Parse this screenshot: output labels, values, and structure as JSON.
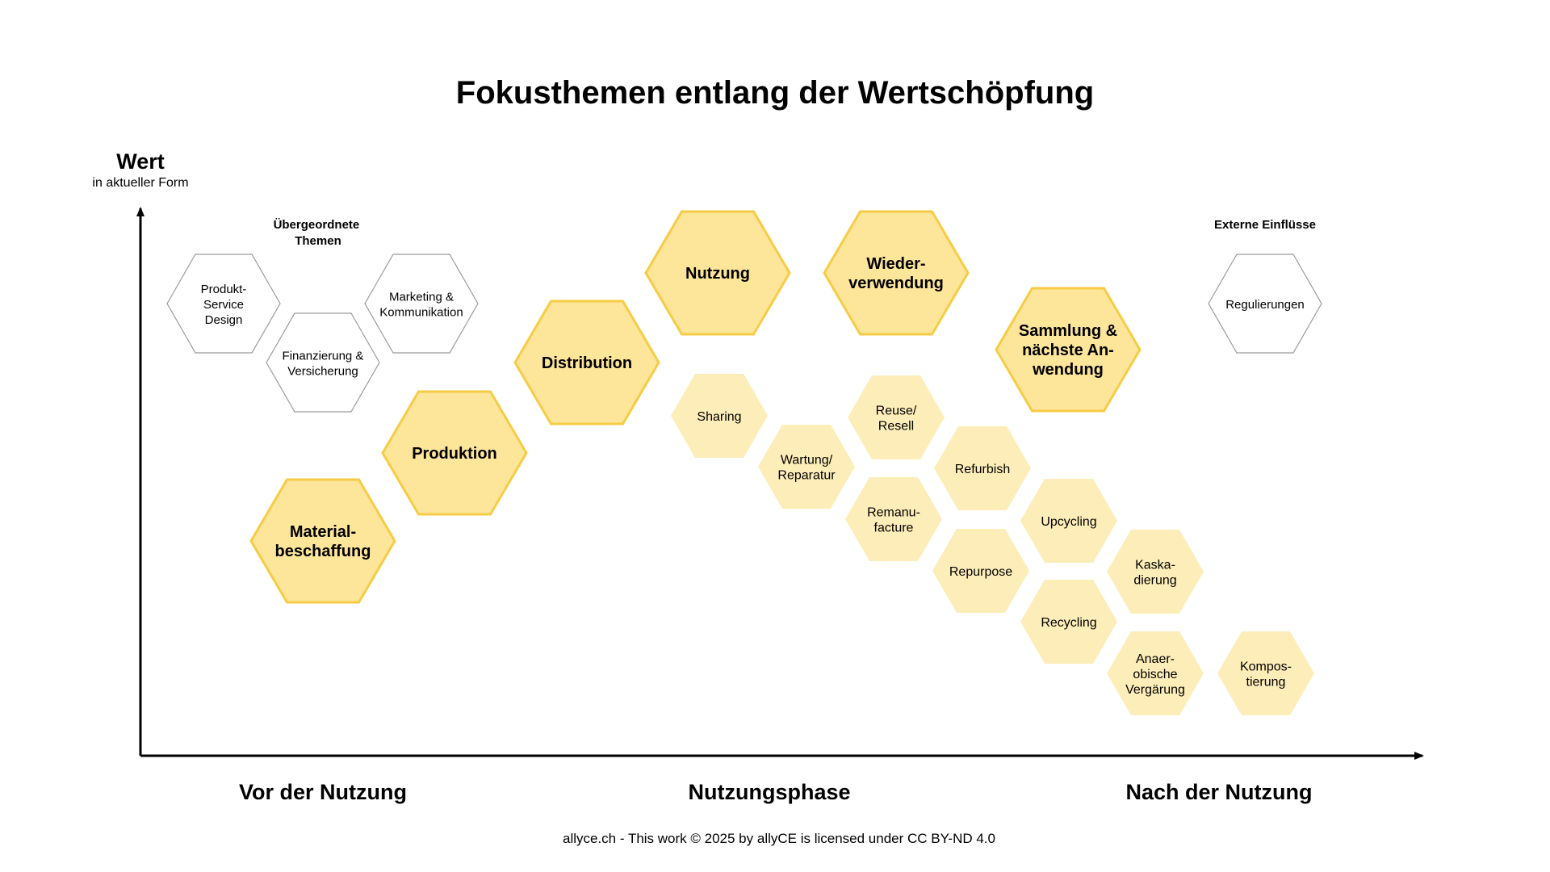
{
  "title": "Fokusthemen entlang der Wertschöpfung",
  "y_axis": {
    "title": "Wert",
    "subtitle": "in aktueller Form"
  },
  "phases": [
    "Vor der Nutzung",
    "Nutzungsphase",
    "Nach der Nutzung"
  ],
  "group_labels": {
    "overarching": [
      "Übergeordnete",
      "Themen"
    ],
    "external": [
      "Externe Einflüsse"
    ]
  },
  "colors": {
    "main_fill": "#fde59a",
    "main_stroke": "#f7cc45",
    "sub_fill": "#fdedb8",
    "outline_stroke": "#9a9a9a",
    "axis": "#000000"
  },
  "hexagons": [
    {
      "id": "produkt-service-design",
      "kind": "outline",
      "lines": [
        "Produkt-",
        "Service",
        "Design"
      ]
    },
    {
      "id": "finanzierung-versicherung",
      "kind": "outline",
      "lines": [
        "Finanzierung &",
        "Versicherung"
      ]
    },
    {
      "id": "marketing-kommunikation",
      "kind": "outline",
      "lines": [
        "Marketing &",
        "Kommunikation"
      ]
    },
    {
      "id": "materialbeschaffung",
      "kind": "main",
      "lines": [
        "Material-",
        "beschaffung"
      ]
    },
    {
      "id": "produktion",
      "kind": "main",
      "lines": [
        "Produktion"
      ]
    },
    {
      "id": "distribution",
      "kind": "main",
      "lines": [
        "Distribution"
      ]
    },
    {
      "id": "nutzung",
      "kind": "main",
      "lines": [
        "Nutzung"
      ]
    },
    {
      "id": "wiederverwendung",
      "kind": "main",
      "lines": [
        "Wieder-",
        "verwendung"
      ]
    },
    {
      "id": "sammlung",
      "kind": "main",
      "lines": [
        "Sammlung &",
        "nächste An-",
        "wendung"
      ]
    },
    {
      "id": "sharing",
      "kind": "sub",
      "lines": [
        "Sharing"
      ]
    },
    {
      "id": "wartung-reparatur",
      "kind": "sub",
      "lines": [
        "Wartung/",
        "Reparatur"
      ]
    },
    {
      "id": "reuse-resell",
      "kind": "sub",
      "lines": [
        "Reuse/",
        "Resell"
      ]
    },
    {
      "id": "refurbish",
      "kind": "sub",
      "lines": [
        "Refurbish"
      ]
    },
    {
      "id": "remanufacture",
      "kind": "sub",
      "lines": [
        "Remanu-",
        "facture"
      ]
    },
    {
      "id": "repurpose",
      "kind": "sub",
      "lines": [
        "Repurpose"
      ]
    },
    {
      "id": "upcycling",
      "kind": "sub",
      "lines": [
        "Upcycling"
      ]
    },
    {
      "id": "recycling",
      "kind": "sub",
      "lines": [
        "Recycling"
      ]
    },
    {
      "id": "kaskadierung",
      "kind": "sub",
      "lines": [
        "Kaska-",
        "dierung"
      ]
    },
    {
      "id": "anaerobische-vergaerung",
      "kind": "sub",
      "lines": [
        "Anaer-",
        "obische",
        "Vergärung"
      ]
    },
    {
      "id": "kompostierung",
      "kind": "sub",
      "lines": [
        "Kompos-",
        "tierung"
      ]
    },
    {
      "id": "regulierungen",
      "kind": "outline",
      "lines": [
        "Regulierungen"
      ]
    }
  ],
  "footer": "allyce.ch - This work © 2025 by allyCE is licensed under CC BY-ND 4.0"
}
